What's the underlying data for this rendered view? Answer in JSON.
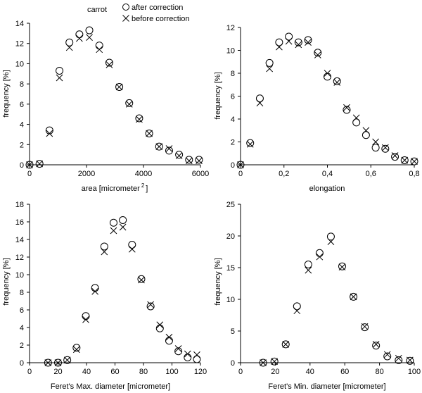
{
  "chart_data": [
    {
      "type": "scatter",
      "title": "carrot",
      "xlabel": "area [micrometer",
      "xlabel_sup": "2",
      "xlabel_end": "]",
      "ylabel": "frequency [%]",
      "xlim": [
        0,
        6000
      ],
      "ylim": [
        0,
        14
      ],
      "xticks": [
        "0",
        "2000",
        "4000",
        "6000"
      ],
      "yticks": [
        "0",
        "2",
        "4",
        "6",
        "8",
        "10",
        "12",
        "14"
      ],
      "legend": {
        "position": "top-right",
        "entries": [
          "after correction",
          "before correction"
        ]
      },
      "x": [
        0,
        350,
        700,
        1050,
        1400,
        1750,
        2100,
        2450,
        2800,
        3150,
        3500,
        3850,
        4200,
        4550,
        4900,
        5250,
        5600,
        5950
      ],
      "series": [
        {
          "name": "after correction",
          "marker": "circle",
          "values": [
            0,
            0.1,
            3.4,
            9.3,
            12.1,
            12.9,
            13.3,
            11.8,
            10.1,
            7.7,
            6.1,
            4.6,
            3.1,
            1.8,
            1.4,
            1.0,
            0.5,
            0.5
          ]
        },
        {
          "name": "before correction",
          "marker": "cross",
          "values": [
            0,
            0.1,
            3.1,
            8.6,
            11.6,
            12.5,
            12.6,
            11.4,
            9.9,
            7.7,
            6.0,
            4.5,
            3.1,
            1.8,
            1.6,
            0.9,
            0.4,
            0.4
          ]
        }
      ]
    },
    {
      "type": "scatter",
      "xlabel": "elongation",
      "ylabel": "frequency [%]",
      "xlim": [
        0,
        0.9
      ],
      "ylim": [
        0,
        12
      ],
      "xticks": [
        "0",
        "0,2",
        "0,4",
        "0,6",
        "0,8"
      ],
      "yticks": [
        "0",
        "2",
        "4",
        "6",
        "8",
        "10",
        "12"
      ],
      "x": [
        0,
        0.05,
        0.1,
        0.15,
        0.2,
        0.25,
        0.3,
        0.35,
        0.4,
        0.45,
        0.5,
        0.55,
        0.6,
        0.65,
        0.7,
        0.75,
        0.8,
        0.85,
        0.9
      ],
      "series": [
        {
          "name": "after correction",
          "marker": "circle",
          "values": [
            0,
            1.9,
            5.8,
            8.9,
            10.7,
            11.2,
            10.7,
            10.9,
            9.8,
            7.7,
            7.3,
            4.8,
            3.7,
            2.6,
            1.5,
            1.4,
            0.7,
            0.4,
            0.3
          ]
        },
        {
          "name": "before correction",
          "marker": "cross",
          "values": [
            0,
            1.8,
            5.4,
            8.4,
            10.3,
            10.8,
            10.5,
            10.7,
            9.6,
            8.0,
            7.2,
            5.0,
            4.1,
            3.0,
            2.0,
            1.5,
            0.8,
            0.4,
            0.3
          ]
        }
      ]
    },
    {
      "type": "scatter",
      "xlabel": "Feret's Max. diameter [micrometer]",
      "ylabel": "frequency [%]",
      "xlim": [
        0,
        120
      ],
      "ylim": [
        0,
        18
      ],
      "xticks": [
        "0",
        "20",
        "40",
        "60",
        "80",
        "100",
        "120"
      ],
      "yticks": [
        "0",
        "2",
        "4",
        "6",
        "8",
        "10",
        "12",
        "14",
        "16",
        "18"
      ],
      "x": [
        13,
        20,
        26.5,
        33,
        39.5,
        46,
        52.5,
        59,
        65.5,
        72,
        78.5,
        85,
        91.5,
        98,
        104.5,
        111,
        117.5
      ],
      "series": [
        {
          "name": "after correction",
          "marker": "circle",
          "values": [
            0,
            0,
            0.3,
            1.7,
            5.3,
            8.5,
            13.2,
            15.9,
            16.2,
            13.4,
            9.5,
            6.4,
            3.9,
            2.5,
            1.3,
            0.6,
            0.4
          ]
        },
        {
          "name": "before correction",
          "marker": "cross",
          "values": [
            0,
            0,
            0.3,
            1.5,
            4.9,
            8.1,
            12.6,
            15.0,
            15.4,
            12.9,
            9.4,
            6.6,
            4.3,
            2.9,
            1.6,
            1.0,
            0.9
          ]
        }
      ]
    },
    {
      "type": "scatter",
      "xlabel": "Feret's Min. diameter [micrometer]",
      "ylabel": "frequency [%]",
      "xlim": [
        0,
        100
      ],
      "ylim": [
        0,
        25
      ],
      "xticks": [
        "0",
        "20",
        "40",
        "60",
        "80",
        "100"
      ],
      "yticks": [
        "0",
        "5",
        "10",
        "15",
        "20",
        "25"
      ],
      "x": [
        13,
        19.5,
        26,
        32.5,
        39,
        45.5,
        52,
        58.5,
        65,
        71.5,
        78,
        84.5,
        91,
        97.5
      ],
      "series": [
        {
          "name": "after correction",
          "marker": "circle",
          "values": [
            0,
            0.2,
            2.9,
            8.9,
            15.5,
            17.3,
            19.9,
            15.2,
            10.4,
            5.6,
            2.7,
            1.0,
            0.4,
            0.3
          ]
        },
        {
          "name": "before correction",
          "marker": "cross",
          "values": [
            0,
            0.2,
            2.9,
            8.2,
            14.6,
            16.7,
            19.1,
            15.1,
            10.4,
            5.7,
            2.9,
            1.3,
            0.7,
            0.4
          ]
        }
      ]
    }
  ]
}
